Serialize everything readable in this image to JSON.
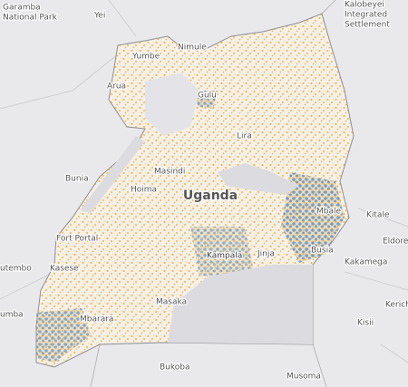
{
  "country": "Uganda",
  "places": [
    {
      "lines": [
        "Garamba",
        "National Park"
      ]
    },
    {
      "lines": [
        "Yei"
      ]
    },
    {
      "lines": [
        "Kalobeyei",
        "Integrated",
        "Settlement"
      ]
    },
    {
      "lines": [
        "Nimule"
      ]
    },
    {
      "lines": [
        "Yumbe"
      ]
    },
    {
      "lines": [
        "Arua"
      ]
    },
    {
      "lines": [
        "Gulu"
      ]
    },
    {
      "lines": [
        "Lira"
      ]
    },
    {
      "lines": [
        "Masindi"
      ]
    },
    {
      "lines": [
        "Bunia"
      ]
    },
    {
      "lines": [
        "Hoima"
      ]
    },
    {
      "lines": [
        "Kitale"
      ]
    },
    {
      "lines": [
        "Mbale"
      ]
    },
    {
      "lines": [
        "Eldore"
      ]
    },
    {
      "lines": [
        "Fort Portal"
      ]
    },
    {
      "lines": [
        "Busia"
      ]
    },
    {
      "lines": [
        "Kasese"
      ]
    },
    {
      "lines": [
        "Kampala"
      ]
    },
    {
      "lines": [
        "Jinja"
      ]
    },
    {
      "lines": [
        "Kakamega"
      ]
    },
    {
      "lines": [
        "utembo"
      ]
    },
    {
      "lines": [
        "umba"
      ]
    },
    {
      "lines": [
        "Kerich"
      ]
    },
    {
      "lines": [
        "Mbarara"
      ]
    },
    {
      "lines": [
        "Masaka"
      ]
    },
    {
      "lines": [
        "Kisii"
      ]
    },
    {
      "lines": [
        "Bukoba"
      ]
    },
    {
      "lines": [
        "Musoma"
      ]
    }
  ]
}
